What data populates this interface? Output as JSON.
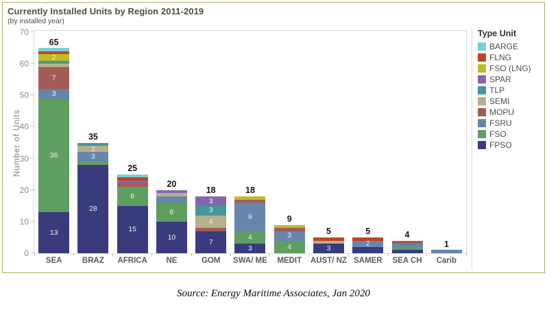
{
  "panel": {
    "title": "Currently Installed Units by Region 2011-2019",
    "subtitle": "(by installed year)"
  },
  "source_note": "Source: Energy Maritime Associates, Jan 2020",
  "legend": {
    "title": "Type Unit",
    "items": [
      "BARGE",
      "FLNG",
      "FSO (LNG)",
      "SPAR",
      "TLP",
      "SEMI",
      "MOPU",
      "FSRU",
      "FSO",
      "FPSO"
    ]
  },
  "chart_data": {
    "type": "bar",
    "stacked": true,
    "title": "Currently Installed Units by Region 2011-2019",
    "subtitle": "(by installed year)",
    "xlabel": "",
    "ylabel": "Number of Units",
    "ylim": [
      0,
      70
    ],
    "yticks": [
      0,
      10,
      20,
      30,
      40,
      50,
      60,
      70
    ],
    "grid": false,
    "legend_position": "right",
    "stack_order_bottom_to_top": [
      "FPSO",
      "FSO",
      "FSRU",
      "MOPU",
      "SEMI",
      "TLP",
      "SPAR",
      "FSO (LNG)",
      "FLNG",
      "BARGE"
    ],
    "colors": {
      "BARGE": "#7ccdd9",
      "FLNG": "#c14420",
      "FSO (LNG)": "#bdbd27",
      "SPAR": "#8566ae",
      "TLP": "#43989a",
      "SEMI": "#b4b18b",
      "MOPU": "#a45a56",
      "FSRU": "#6785ad",
      "FSO": "#5f9e61",
      "FPSO": "#3a3b7d"
    },
    "categories": [
      "SEA",
      "BRAZ",
      "AFRICA",
      "NE",
      "GOM",
      "SWA/ ME",
      "MEDIT",
      "AUST/ NZ",
      "SAMER",
      "SEA CH",
      "Carib"
    ],
    "bars": [
      {
        "category": "SEA",
        "total": 65,
        "segments": [
          {
            "type": "FPSO",
            "value": 13,
            "label": "13"
          },
          {
            "type": "FSO",
            "value": 36,
            "label": "36"
          },
          {
            "type": "FSRU",
            "value": 3,
            "label": "3"
          },
          {
            "type": "MOPU",
            "value": 7,
            "label": "7"
          },
          {
            "type": "SEMI",
            "value": 1,
            "label": ""
          },
          {
            "type": "TLP",
            "value": 1,
            "label": ""
          },
          {
            "type": "FSO (LNG)",
            "value": 2,
            "label": "2"
          },
          {
            "type": "FLNG",
            "value": 1,
            "label": ""
          },
          {
            "type": "BARGE",
            "value": 1,
            "label": ""
          }
        ]
      },
      {
        "category": "BRAZ",
        "total": 35,
        "segments": [
          {
            "type": "FPSO",
            "value": 28,
            "label": "28"
          },
          {
            "type": "FSO",
            "value": 1,
            "label": ""
          },
          {
            "type": "FSRU",
            "value": 3,
            "label": "3"
          },
          {
            "type": "SEMI",
            "value": 2,
            "label": "2"
          },
          {
            "type": "TLP",
            "value": 1,
            "label": ""
          }
        ]
      },
      {
        "category": "AFRICA",
        "total": 25,
        "segments": [
          {
            "type": "FPSO",
            "value": 15,
            "label": "15"
          },
          {
            "type": "FSO",
            "value": 6,
            "label": "6"
          },
          {
            "type": "MOPU",
            "value": 1,
            "label": ""
          },
          {
            "type": "SPAR",
            "value": 1,
            "label": ""
          },
          {
            "type": "FLNG",
            "value": 1,
            "label": ""
          },
          {
            "type": "BARGE",
            "value": 1,
            "label": ""
          }
        ]
      },
      {
        "category": "NE",
        "total": 20,
        "segments": [
          {
            "type": "FPSO",
            "value": 10,
            "label": "10"
          },
          {
            "type": "FSO",
            "value": 6,
            "label": "6"
          },
          {
            "type": "FSRU",
            "value": 2,
            "label": ""
          },
          {
            "type": "SEMI",
            "value": 1,
            "label": ""
          },
          {
            "type": "SPAR",
            "value": 1,
            "label": ""
          }
        ]
      },
      {
        "category": "GOM",
        "total": 18,
        "segments": [
          {
            "type": "FPSO",
            "value": 7,
            "label": "7"
          },
          {
            "type": "MOPU",
            "value": 1,
            "label": ""
          },
          {
            "type": "SEMI",
            "value": 4,
            "label": "4"
          },
          {
            "type": "TLP",
            "value": 3,
            "label": "3"
          },
          {
            "type": "SPAR",
            "value": 3,
            "label": "3"
          }
        ]
      },
      {
        "category": "SWA/ ME",
        "total": 18,
        "segments": [
          {
            "type": "FPSO",
            "value": 3,
            "label": "3"
          },
          {
            "type": "FSO",
            "value": 4,
            "label": "4"
          },
          {
            "type": "FSRU",
            "value": 9,
            "label": "9"
          },
          {
            "type": "MOPU",
            "value": 1,
            "label": ""
          },
          {
            "type": "FSO (LNG)",
            "value": 1,
            "label": ""
          }
        ]
      },
      {
        "category": "MEDIT",
        "total": 9,
        "segments": [
          {
            "type": "FSO",
            "value": 4,
            "label": "4"
          },
          {
            "type": "FSRU",
            "value": 3,
            "label": "3"
          },
          {
            "type": "MOPU",
            "value": 1,
            "label": ""
          },
          {
            "type": "FSO (LNG)",
            "value": 1,
            "label": ""
          }
        ]
      },
      {
        "category": "AUST/ NZ",
        "total": 5,
        "segments": [
          {
            "type": "FPSO",
            "value": 3,
            "label": "3"
          },
          {
            "type": "SEMI",
            "value": 1,
            "label": ""
          },
          {
            "type": "FLNG",
            "value": 1,
            "label": ""
          }
        ]
      },
      {
        "category": "SAMER",
        "total": 5,
        "segments": [
          {
            "type": "FPSO",
            "value": 2,
            "label": ""
          },
          {
            "type": "FSRU",
            "value": 2,
            "label": "2"
          },
          {
            "type": "FLNG",
            "value": 1,
            "label": ""
          }
        ]
      },
      {
        "category": "SEA CH",
        "total": 4,
        "segments": [
          {
            "type": "FPSO",
            "value": 1,
            "label": ""
          },
          {
            "type": "FSO",
            "value": 1,
            "label": ""
          },
          {
            "type": "FSRU",
            "value": 1,
            "label": ""
          },
          {
            "type": "MOPU",
            "value": 1,
            "label": ""
          }
        ]
      },
      {
        "category": "Carib",
        "total": 1,
        "segments": [
          {
            "type": "FSRU",
            "value": 1,
            "label": ""
          }
        ]
      }
    ]
  }
}
